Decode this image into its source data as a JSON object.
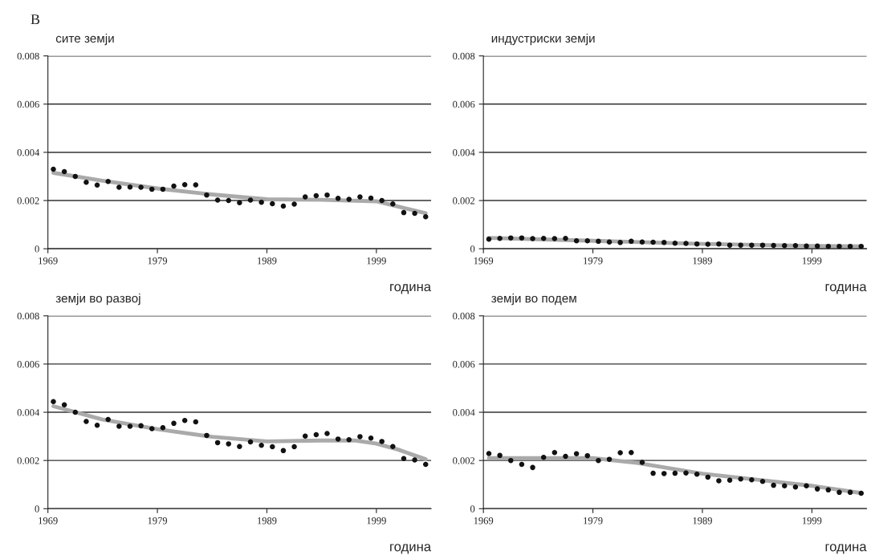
{
  "chart_data": [
    {
      "type": "scatter",
      "title": "сите земји",
      "xlabel": "година",
      "annotations": [
        "B"
      ],
      "xlim": [
        1969,
        2004
      ],
      "ylim": [
        0,
        0.008
      ],
      "xticks": [
        1969,
        1979,
        1989,
        1999
      ],
      "yticks": [
        0,
        0.002,
        0.004,
        0.006,
        0.008
      ],
      "grid": "y",
      "marker": "circle",
      "series": [
        {
          "color": "#111111",
          "x": [
            1969.5,
            1970.5,
            1971.5,
            1972.5,
            1973.5,
            1974.5,
            1975.5,
            1976.5,
            1977.5,
            1978.5,
            1979.5,
            1980.5,
            1981.5,
            1982.5,
            1983.5,
            1984.5,
            1985.5,
            1986.5,
            1987.5,
            1988.5,
            1989.5,
            1990.5,
            1991.5,
            1992.5,
            1993.5,
            1994.5,
            1995.5,
            1996.5,
            1997.5,
            1998.5,
            1999.5,
            2000.5,
            2001.5,
            2002.5,
            2003.5
          ],
          "values": [
            0.0033,
            0.0032,
            0.003,
            0.00276,
            0.00264,
            0.00279,
            0.00255,
            0.00256,
            0.00255,
            0.00247,
            0.00247,
            0.0026,
            0.00266,
            0.00265,
            0.00223,
            0.00202,
            0.002,
            0.00191,
            0.00202,
            0.00193,
            0.00187,
            0.00177,
            0.00185,
            0.00215,
            0.0022,
            0.00223,
            0.00209,
            0.00205,
            0.00215,
            0.0021,
            0.002,
            0.00186,
            0.0015,
            0.00147,
            0.00133
          ]
        },
        {
          "type": "line",
          "marker": "none",
          "color": "#aaaaaa",
          "x": [
            1969.5,
            1974,
            1979,
            1984,
            1989,
            1994,
            1999,
            2003.5
          ],
          "values": [
            0.00315,
            0.00282,
            0.0025,
            0.00225,
            0.00205,
            0.00203,
            0.00197,
            0.00147
          ]
        }
      ]
    },
    {
      "type": "scatter",
      "title": "индустриски земји",
      "xlabel": "година",
      "xlim": [
        1969,
        2004
      ],
      "ylim": [
        0,
        0.008
      ],
      "xticks": [
        1969,
        1979,
        1989,
        1999
      ],
      "yticks": [
        0,
        0.002,
        0.004,
        0.006,
        0.008
      ],
      "grid": "y",
      "marker": "circle",
      "series": [
        {
          "color": "#111111",
          "x": [
            1969.5,
            1970.5,
            1971.5,
            1972.5,
            1973.5,
            1974.5,
            1975.5,
            1976.5,
            1977.5,
            1978.5,
            1979.5,
            1980.5,
            1981.5,
            1982.5,
            1983.5,
            1984.5,
            1985.5,
            1986.5,
            1987.5,
            1988.5,
            1989.5,
            1990.5,
            1991.5,
            1992.5,
            1993.5,
            1994.5,
            1995.5,
            1996.5,
            1997.5,
            1998.5,
            1999.5,
            2000.5,
            2001.5,
            2002.5,
            2003.5
          ],
          "values": [
            0.0004,
            0.00043,
            0.00045,
            0.00045,
            0.00042,
            0.00043,
            0.00042,
            0.00043,
            0.00033,
            0.00033,
            0.00031,
            0.00028,
            0.00026,
            0.00031,
            0.00028,
            0.00027,
            0.00026,
            0.00023,
            0.00022,
            0.0002,
            0.00019,
            0.0002,
            0.00015,
            0.00015,
            0.00015,
            0.00015,
            0.00014,
            0.00013,
            0.00013,
            0.00011,
            0.00011,
            0.0001,
            0.0001,
            0.0001,
            0.0001
          ]
        },
        {
          "type": "line",
          "marker": "none",
          "color": "#aaaaaa",
          "x": [
            1969.5,
            1979,
            1989,
            1999,
            2003.5
          ],
          "values": [
            0.00045,
            0.00033,
            0.0002,
            0.00012,
            0.0001
          ]
        }
      ]
    },
    {
      "type": "scatter",
      "title": "земји во развој",
      "xlabel": "година",
      "xlim": [
        1969,
        2004
      ],
      "ylim": [
        0,
        0.008
      ],
      "xticks": [
        1969,
        1979,
        1989,
        1999
      ],
      "yticks": [
        0,
        0.002,
        0.004,
        0.006,
        0.008
      ],
      "grid": "y",
      "marker": "circle",
      "series": [
        {
          "color": "#111111",
          "x": [
            1969.5,
            1970.5,
            1971.5,
            1972.5,
            1973.5,
            1974.5,
            1975.5,
            1976.5,
            1977.5,
            1978.5,
            1979.5,
            1980.5,
            1981.5,
            1982.5,
            1983.5,
            1984.5,
            1985.5,
            1986.5,
            1987.5,
            1988.5,
            1989.5,
            1990.5,
            1991.5,
            1992.5,
            1993.5,
            1994.5,
            1995.5,
            1996.5,
            1997.5,
            1998.5,
            1999.5,
            2000.5,
            2001.5,
            2002.5,
            2003.5
          ],
          "values": [
            0.00444,
            0.00431,
            0.004,
            0.00362,
            0.00346,
            0.0037,
            0.00342,
            0.00342,
            0.00344,
            0.00332,
            0.00336,
            0.00354,
            0.00366,
            0.0036,
            0.00304,
            0.00274,
            0.00269,
            0.00258,
            0.00277,
            0.00263,
            0.00257,
            0.00241,
            0.00257,
            0.00301,
            0.00307,
            0.00312,
            0.00289,
            0.00286,
            0.00299,
            0.00293,
            0.00279,
            0.00258,
            0.00208,
            0.00202,
            0.00184
          ]
        },
        {
          "type": "line",
          "marker": "none",
          "color": "#aaaaaa",
          "x": [
            1969.5,
            1974,
            1979,
            1984,
            1989,
            1994,
            1997,
            1999,
            2001,
            2003.5
          ],
          "values": [
            0.00425,
            0.0037,
            0.0033,
            0.00298,
            0.00279,
            0.00283,
            0.00283,
            0.0027,
            0.00245,
            0.00205
          ]
        }
      ]
    },
    {
      "type": "scatter",
      "title": "земји во подем",
      "xlabel": "година",
      "xlim": [
        1969,
        2004
      ],
      "ylim": [
        0,
        0.008
      ],
      "xticks": [
        1969,
        1979,
        1989,
        1999
      ],
      "yticks": [
        0,
        0.002,
        0.004,
        0.006,
        0.008
      ],
      "grid": "y",
      "marker": "circle",
      "series": [
        {
          "color": "#111111",
          "x": [
            1969.5,
            1970.5,
            1971.5,
            1972.5,
            1973.5,
            1974.5,
            1975.5,
            1976.5,
            1977.5,
            1978.5,
            1979.5,
            1980.5,
            1981.5,
            1982.5,
            1983.5,
            1984.5,
            1985.5,
            1986.5,
            1987.5,
            1988.5,
            1989.5,
            1990.5,
            1991.5,
            1992.5,
            1993.5,
            1994.5,
            1995.5,
            1996.5,
            1997.5,
            1998.5,
            1999.5,
            2000.5,
            2001.5,
            2002.5,
            2003.5
          ],
          "values": [
            0.00229,
            0.00221,
            0.002,
            0.00184,
            0.00171,
            0.00213,
            0.00233,
            0.00217,
            0.00228,
            0.0022,
            0.002,
            0.00205,
            0.00232,
            0.00233,
            0.00192,
            0.00147,
            0.00146,
            0.00147,
            0.00148,
            0.00143,
            0.00131,
            0.00116,
            0.00118,
            0.00123,
            0.0012,
            0.00113,
            0.00097,
            0.00095,
            0.0009,
            0.00095,
            0.00082,
            0.00078,
            0.00068,
            0.00068,
            0.00064
          ]
        },
        {
          "type": "line",
          "marker": "none",
          "color": "#aaaaaa",
          "x": [
            1969.5,
            1979,
            1983,
            1989,
            1994,
            1999,
            2003.5
          ],
          "values": [
            0.0021,
            0.0021,
            0.0019,
            0.00145,
            0.0012,
            0.00095,
            0.00065
          ]
        }
      ]
    }
  ]
}
